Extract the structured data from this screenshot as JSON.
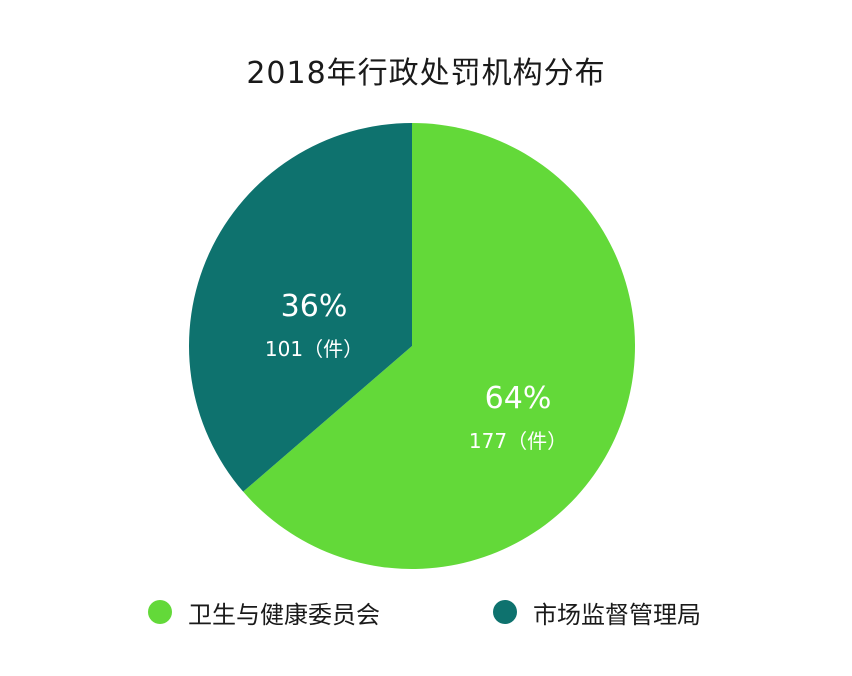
{
  "chart_data": {
    "type": "pie",
    "title": "2018年行政处罚机构分布",
    "slices": [
      {
        "name": "卫生与健康委员会",
        "value": 177,
        "percent_label": "64%",
        "value_label": "177（件）",
        "color": "#63d939"
      },
      {
        "name": "市场监督管理局",
        "value": 101,
        "percent_label": "36%",
        "value_label": "101（件）",
        "color": "#0e726e"
      }
    ],
    "legend_position": "bottom"
  }
}
